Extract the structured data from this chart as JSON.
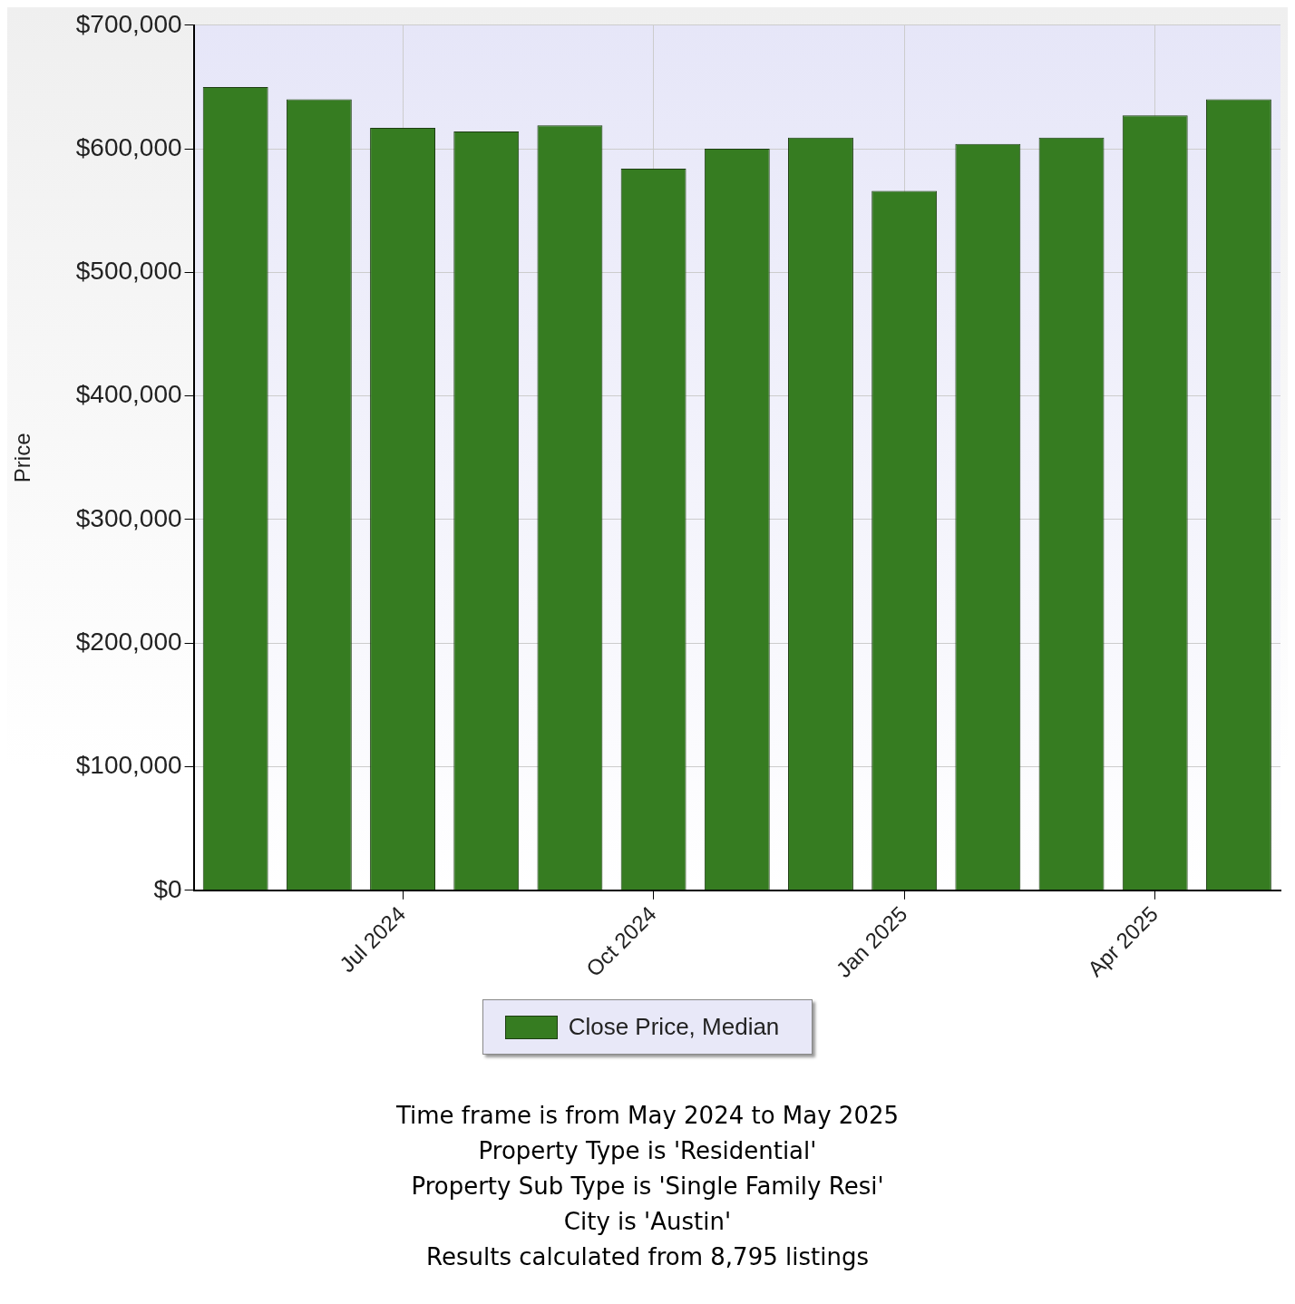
{
  "chart_data": {
    "type": "bar",
    "ylabel": "Price",
    "categories": [
      null,
      null,
      "Jul 2024",
      null,
      null,
      "Oct 2024",
      null,
      null,
      "Jan 2025",
      null,
      null,
      "Apr 2025",
      null
    ],
    "series": [
      {
        "name": "Close Price, Median",
        "color": "#367c21",
        "values": [
          650000,
          640000,
          617000,
          614000,
          619000,
          584000,
          600000,
          609000,
          566000,
          604000,
          609000,
          627000,
          640000
        ]
      }
    ],
    "ylim": [
      0,
      700000
    ],
    "yticks": [
      {
        "value": 0,
        "label": "$0"
      },
      {
        "value": 100000,
        "label": "$100,000"
      },
      {
        "value": 200000,
        "label": "$200,000"
      },
      {
        "value": 300000,
        "label": "$300,000"
      },
      {
        "value": 400000,
        "label": "$400,000"
      },
      {
        "value": 500000,
        "label": "$500,000"
      },
      {
        "value": 600000,
        "label": "$600,000"
      },
      {
        "value": 700000,
        "label": "$700,000"
      }
    ],
    "grid": true,
    "legend": "bottom",
    "annotations": [
      "Time frame is from May 2024 to May 2025",
      "Property Type is 'Residential'",
      "Property Sub Type is 'Single Family Resi'",
      "City is 'Austin'",
      "Results calculated from 8,795 listings"
    ]
  }
}
